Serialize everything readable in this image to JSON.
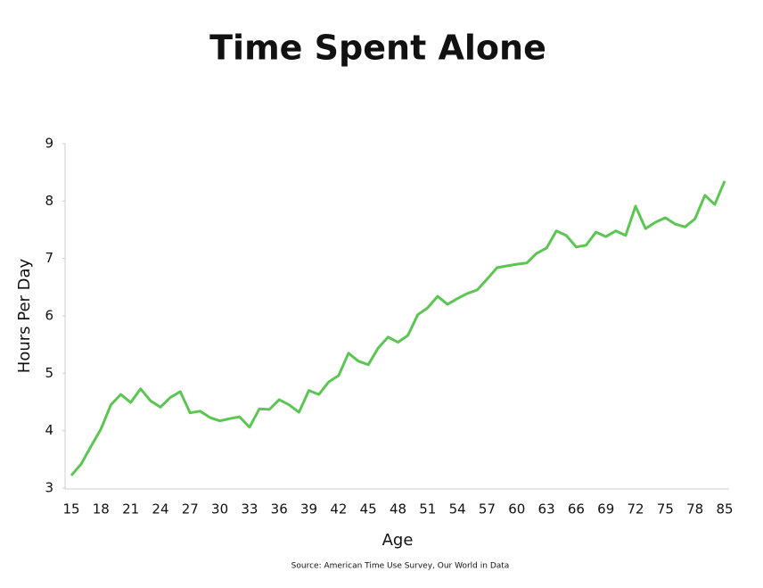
{
  "chart_data": {
    "type": "line",
    "title": "Time Spent Alone",
    "x_label": "Age",
    "y_label": "Hours Per Day",
    "source": "Source: American Time Use Survey, Our World in Data",
    "categories": [
      15,
      null,
      null,
      18,
      null,
      null,
      21,
      null,
      null,
      24,
      null,
      null,
      27,
      null,
      null,
      30,
      null,
      null,
      33,
      null,
      null,
      36,
      null,
      null,
      39,
      null,
      null,
      42,
      null,
      null,
      45,
      null,
      null,
      48,
      null,
      null,
      51,
      null,
      null,
      54,
      null,
      null,
      57,
      null,
      null,
      60,
      null,
      null,
      63,
      null,
      null,
      66,
      null,
      null,
      69,
      null,
      null,
      72,
      null,
      null,
      75,
      null,
      null,
      78,
      null,
      null,
      85
    ],
    "series": [
      {
        "name": "Hours Per Day",
        "color": "#5cc653",
        "values": [
          3.22,
          3.42,
          3.73,
          4.03,
          4.45,
          4.63,
          4.49,
          4.73,
          4.52,
          4.41,
          4.58,
          4.68,
          4.31,
          4.34,
          4.23,
          4.17,
          4.21,
          4.24,
          4.06,
          4.38,
          4.37,
          4.54,
          4.45,
          4.32,
          4.7,
          4.63,
          4.85,
          4.96,
          5.35,
          5.21,
          5.15,
          5.44,
          5.63,
          5.54,
          5.66,
          6.02,
          6.14,
          6.34,
          6.2,
          6.3,
          6.39,
          6.45,
          6.64,
          6.84,
          6.87,
          6.9,
          6.92,
          7.09,
          7.18,
          7.48,
          7.4,
          7.2,
          7.23,
          7.46,
          7.38,
          7.48,
          7.4,
          7.91,
          7.52,
          7.63,
          7.71,
          7.6,
          7.55,
          7.69,
          8.1,
          7.94,
          8.35
        ]
      }
    ],
    "ylim": [
      3,
      9
    ],
    "yticks": [
      3,
      4,
      5,
      6,
      7,
      8,
      9
    ],
    "grid": false
  }
}
